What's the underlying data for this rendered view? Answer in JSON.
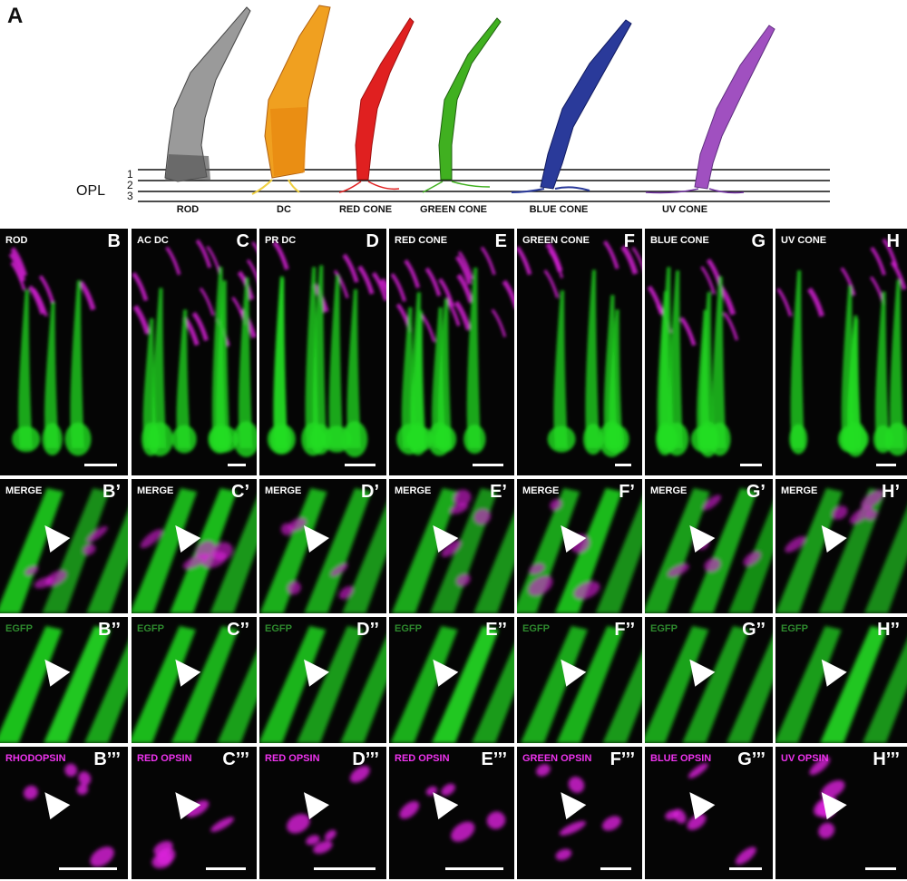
{
  "panel_a": {
    "letter": "A",
    "opl_label": "OPL",
    "opl_layers": [
      "1",
      "2",
      "3"
    ],
    "cells": [
      {
        "label": "ROD",
        "color": "#8a8a8a"
      },
      {
        "label": "DC",
        "color": "#e8a020"
      },
      {
        "label": "RED CONE",
        "color": "#e02020"
      },
      {
        "label": "GREEN CONE",
        "color": "#40b020"
      },
      {
        "label": "BLUE CONE",
        "color": "#2a3a9a"
      },
      {
        "label": "UV CONE",
        "color": "#a050c0"
      }
    ]
  },
  "colors": {
    "egfp": "#22dd22",
    "opsin": "#dd22dd",
    "egfp_label": "#2e8b2e",
    "opsin_label": "#ee33ee",
    "row1_label": "#ffffff"
  },
  "rows": [
    {
      "id": "row1",
      "panels": [
        {
          "label": "ROD",
          "letter": "B"
        },
        {
          "label": "AC DC",
          "letter": "C"
        },
        {
          "label": "PR DC",
          "letter": "D"
        },
        {
          "label": "RED CONE",
          "letter": "E"
        },
        {
          "label": "GREEN CONE",
          "letter": "F"
        },
        {
          "label": "BLUE CONE",
          "letter": "G"
        },
        {
          "label": "UV CONE",
          "letter": "H"
        }
      ]
    },
    {
      "id": "merge",
      "panels": [
        {
          "label": "MERGE",
          "letter": "B’"
        },
        {
          "label": "MERGE",
          "letter": "C’"
        },
        {
          "label": "MERGE",
          "letter": "D’"
        },
        {
          "label": "MERGE",
          "letter": "E’"
        },
        {
          "label": "MERGE",
          "letter": "F’"
        },
        {
          "label": "MERGE",
          "letter": "G’"
        },
        {
          "label": "MERGE",
          "letter": "H’"
        }
      ]
    },
    {
      "id": "egfp",
      "panels": [
        {
          "label": "EGFP",
          "letter": "B’’"
        },
        {
          "label": "EGFP",
          "letter": "C’’"
        },
        {
          "label": "EGFP",
          "letter": "D’’"
        },
        {
          "label": "EGFP",
          "letter": "E’’"
        },
        {
          "label": "EGFP",
          "letter": "F’’"
        },
        {
          "label": "EGFP",
          "letter": "G’’"
        },
        {
          "label": "EGFP",
          "letter": "H’’"
        }
      ]
    },
    {
      "id": "opsin",
      "panels": [
        {
          "label": "RHODOPSIN",
          "letter": "B’’’"
        },
        {
          "label": "RED OPSIN",
          "letter": "C’’’"
        },
        {
          "label": "RED OPSIN",
          "letter": "D’’’"
        },
        {
          "label": "RED OPSIN",
          "letter": "E’’’"
        },
        {
          "label": "GREEN OPSIN",
          "letter": "F’’’"
        },
        {
          "label": "BLUE OPSIN",
          "letter": "G’’’"
        },
        {
          "label": "UV OPSIN",
          "letter": "H’’’"
        }
      ]
    }
  ]
}
